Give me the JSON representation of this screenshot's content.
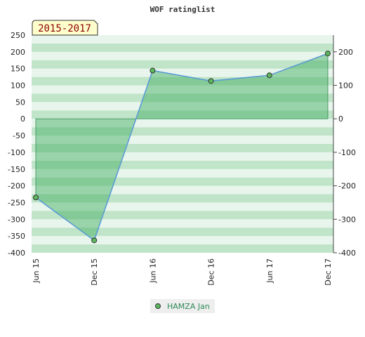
{
  "chart_data": {
    "type": "area",
    "title": "WOF ratinglist",
    "period_label": "2015-2017",
    "categories": [
      "Jun 15",
      "Dec 15",
      "Jun 16",
      "Dec 16",
      "Jun 17",
      "Dec 17"
    ],
    "series": [
      {
        "name": "HAMZA Jan",
        "values": [
          -235,
          -363,
          144,
          113,
          130,
          195
        ]
      }
    ],
    "y_left": {
      "range": [
        -400,
        250
      ],
      "ticks": [
        250,
        200,
        150,
        100,
        50,
        0,
        -50,
        -100,
        -150,
        -200,
        -250,
        -300,
        -350,
        -400
      ]
    },
    "y_right": {
      "range": [
        -400,
        250
      ],
      "ticks": [
        200,
        100,
        0,
        -100,
        -200,
        -300,
        -400
      ]
    },
    "legend_position": "bottom-center",
    "colors": {
      "line": "#5b9bd5",
      "fill": "#3aaa5a",
      "marker": "#5cb85c",
      "band_dark": "#bfe4c8",
      "band_light": "#e8f5ec",
      "badge_bg": "#ffffcc",
      "badge_text": "#8b0000"
    }
  }
}
